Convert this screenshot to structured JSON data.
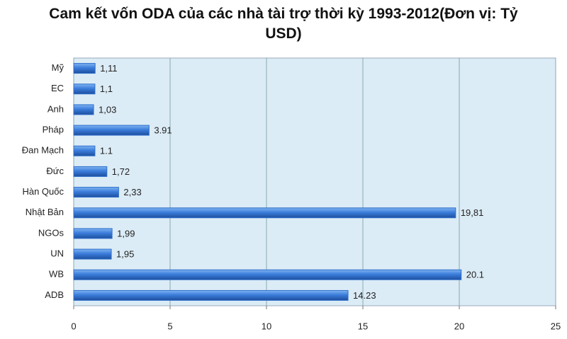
{
  "chart_data": {
    "type": "barh",
    "title": "Cam kết vốn ODA của các nhà tài trợ thời kỳ 1993-2012(Đơn vị: Tỷ USD)",
    "categories": [
      "Mỹ",
      "EC",
      "Anh",
      "Pháp",
      "Đan Mạch",
      "Đức",
      "Hàn Quốc",
      "Nhật Bản",
      "NGOs",
      "UN",
      "WB",
      "ADB"
    ],
    "values": [
      1.11,
      1.1,
      1.03,
      3.91,
      1.1,
      1.72,
      2.33,
      19.81,
      1.99,
      1.95,
      20.1,
      14.23
    ],
    "value_labels": [
      "1,11",
      "1,1",
      "1,03",
      "3.91",
      "1.1",
      "1,72",
      "2,33",
      "19,81",
      "1,99",
      "1,95",
      "20.1",
      "14.23"
    ],
    "color": "#2f6fcc",
    "xlim": [
      0,
      25
    ],
    "xticks": [
      0,
      5,
      10,
      15,
      20,
      25
    ],
    "grid": true
  }
}
